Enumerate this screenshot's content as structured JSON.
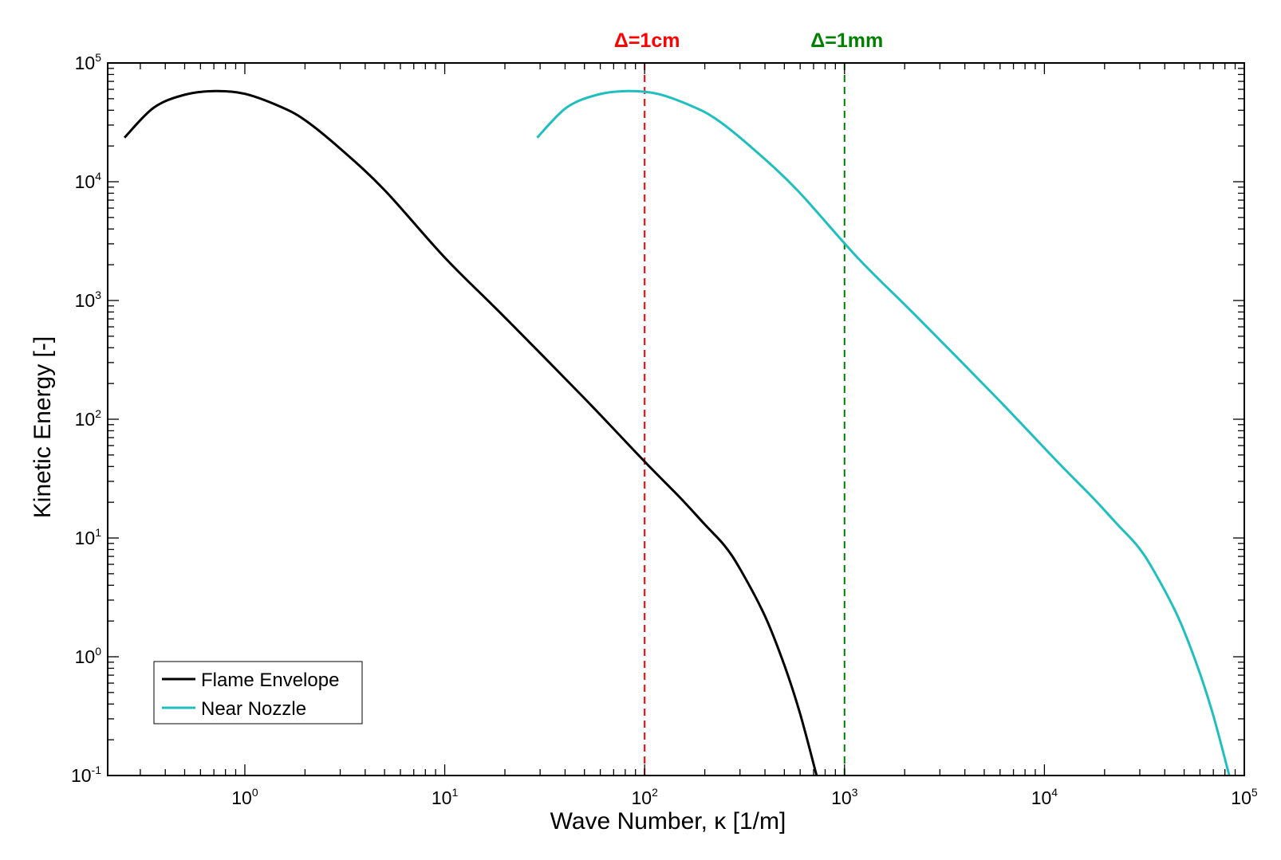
{
  "chart_data": {
    "type": "line",
    "title": "",
    "xlabel": "Wave Number, κ [1/m]",
    "ylabel": "Kinetic Energy [-]",
    "xscale": "log",
    "yscale": "log",
    "xlim": [
      0.206,
      100000
    ],
    "ylim": [
      0.1,
      100000
    ],
    "grid": false,
    "legend_position": "bottom-left",
    "x_ticks": [
      {
        "base": "10",
        "exp": "0",
        "value": 1
      },
      {
        "base": "10",
        "exp": "1",
        "value": 10
      },
      {
        "base": "10",
        "exp": "2",
        "value": 100
      },
      {
        "base": "10",
        "exp": "3",
        "value": 1000
      },
      {
        "base": "10",
        "exp": "4",
        "value": 10000
      },
      {
        "base": "10",
        "exp": "5",
        "value": 100000
      }
    ],
    "y_ticks": [
      {
        "base": "10",
        "exp": "-1",
        "value": 0.1
      },
      {
        "base": "10",
        "exp": "0",
        "value": 1
      },
      {
        "base": "10",
        "exp": "1",
        "value": 10
      },
      {
        "base": "10",
        "exp": "2",
        "value": 100
      },
      {
        "base": "10",
        "exp": "3",
        "value": 1000
      },
      {
        "base": "10",
        "exp": "4",
        "value": 10000
      },
      {
        "base": "10",
        "exp": "5",
        "value": 100000
      }
    ],
    "series": [
      {
        "name": "Flame Envelope",
        "color": "#000000",
        "x": [
          0.25,
          0.35,
          0.5,
          0.71,
          1.0,
          1.5,
          2,
          3,
          5,
          10,
          20,
          50,
          100,
          150,
          200,
          250,
          300,
          400,
          500,
          600,
          725
        ],
        "y": [
          23500,
          42000,
          54000,
          58000,
          55000,
          43000,
          33000,
          19000,
          8500,
          2300,
          720,
          150,
          44,
          22,
          13,
          8.7,
          5.5,
          2.2,
          0.85,
          0.33,
          0.1
        ]
      },
      {
        "name": "Near Nozzle",
        "color": "#1fbfbf",
        "x": [
          29,
          40.6,
          58,
          82,
          116,
          174,
          232,
          348,
          580,
          1160,
          2320,
          5800,
          11600,
          17400,
          23200,
          29000,
          34800,
          46400,
          58000,
          69600,
          84100
        ],
        "y": [
          23500,
          42000,
          54000,
          58000,
          55000,
          43000,
          33000,
          19000,
          8500,
          2300,
          720,
          150,
          44,
          22,
          13,
          8.7,
          5.5,
          2.2,
          0.85,
          0.33,
          0.1
        ]
      }
    ],
    "annotations": [
      {
        "label": "Δ=1cm",
        "x": 100,
        "color": "#ff0000",
        "style": "dashed vertical line"
      },
      {
        "label": "Δ=1mm",
        "x": 1000,
        "color": "#008000",
        "style": "dashed vertical line"
      }
    ]
  }
}
